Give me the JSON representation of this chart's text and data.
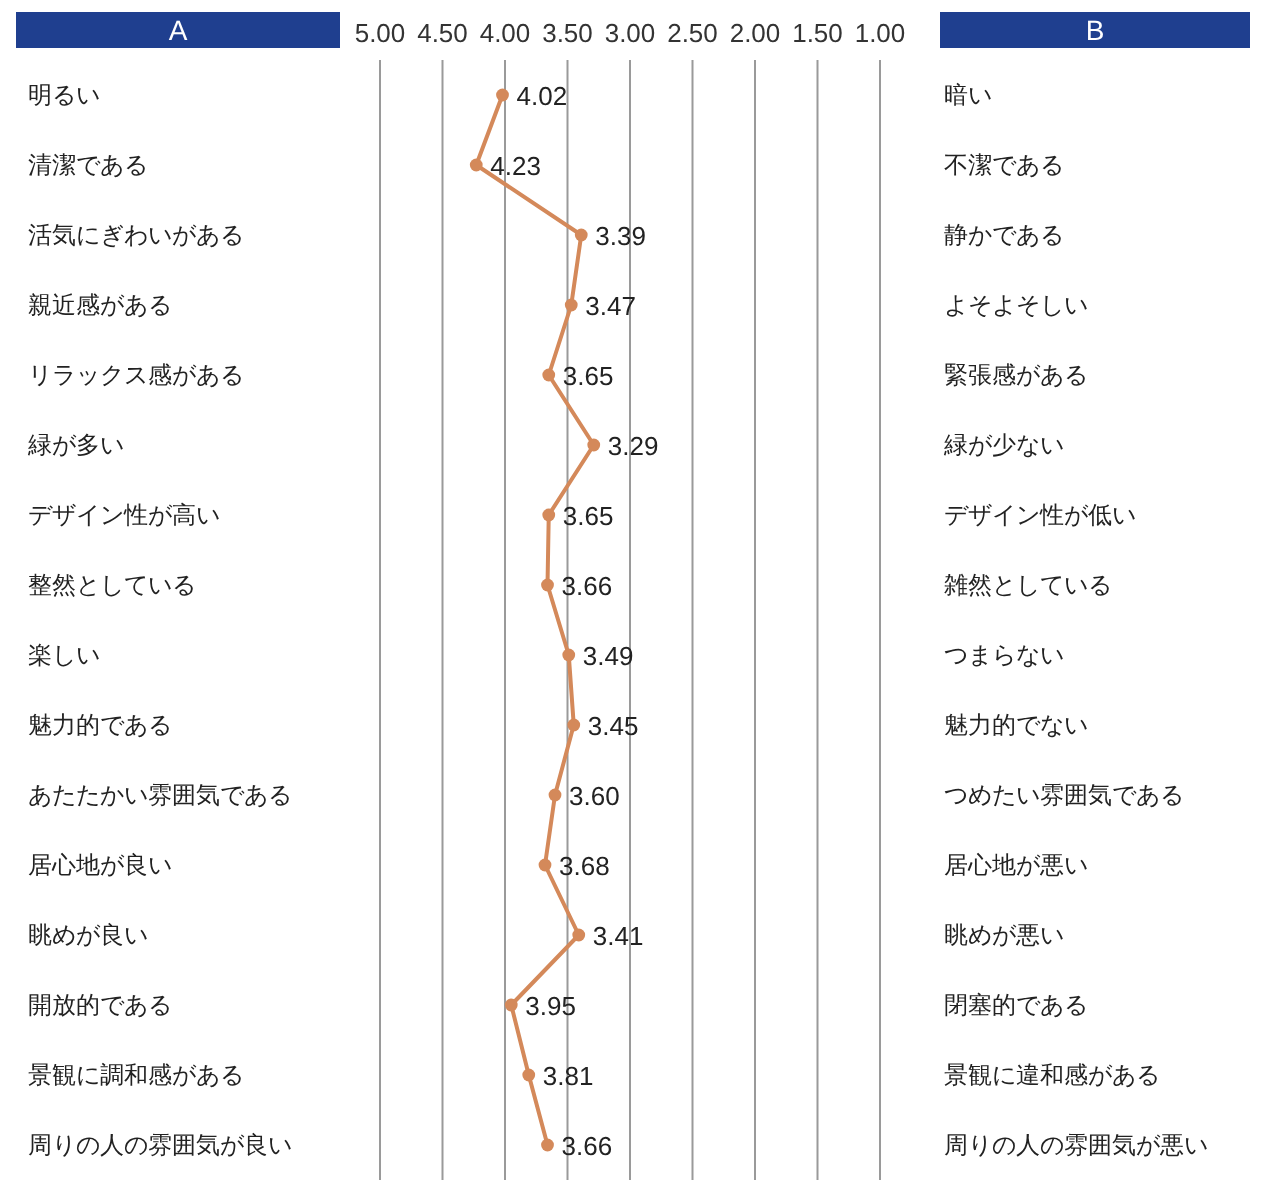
{
  "chart_data": {
    "type": "line",
    "orientation": "horizontal",
    "annotations": [
      "A",
      "B"
    ],
    "categories": [
      "明るい",
      "清潔である",
      "活気にぎわいがある",
      "親近感がある",
      "リラックス感がある",
      "緑が多い",
      "デザイン性が高い",
      "整然としている",
      "楽しい",
      "魅力的である",
      "あたたかい雰囲気である",
      "居心地が良い",
      "眺めが良い",
      "開放的である",
      "景観に調和感がある",
      "周りの人の雰囲気が良い"
    ],
    "y2_categories": [
      "暗い",
      "不潔である",
      "静かである",
      "よそよそしい",
      "緊張感がある",
      "緑が少ない",
      "デザイン性が低い",
      "雑然としている",
      "つまらない",
      "魅力的でない",
      "つめたい雰囲気である",
      "居心地が悪い",
      "眺めが悪い",
      "閉塞的である",
      "景観に違和感がある",
      "周りの人の雰囲気が悪い"
    ],
    "series": [
      {
        "color": "#d4895a",
        "values": [
          4.02,
          4.23,
          3.39,
          3.47,
          3.65,
          3.29,
          3.65,
          3.66,
          3.49,
          3.45,
          3.6,
          3.68,
          3.41,
          3.95,
          3.81,
          3.66
        ],
        "value_labels": [
          "4.02",
          "4.23",
          "3.39",
          "3.47",
          "3.65",
          "3.29",
          "3.65",
          "3.66",
          "3.49",
          "3.45",
          "3.60",
          "3.68",
          "3.41",
          "3.95",
          "3.81",
          "3.66"
        ]
      }
    ],
    "xlim": [
      5,
      1
    ],
    "xticks": [
      {
        "value": 5,
        "label": "5.00"
      },
      {
        "value": 4.5,
        "label": "4.50"
      },
      {
        "value": 4,
        "label": "4.00"
      },
      {
        "value": 3.5,
        "label": "3.50"
      },
      {
        "value": 3,
        "label": "3.00"
      },
      {
        "value": 2.5,
        "label": "2.50"
      },
      {
        "value": 2,
        "label": "2.00"
      },
      {
        "value": 1.5,
        "label": "1.50"
      },
      {
        "value": 1,
        "label": "1.00"
      }
    ],
    "grid": "x",
    "marker": "circle"
  }
}
